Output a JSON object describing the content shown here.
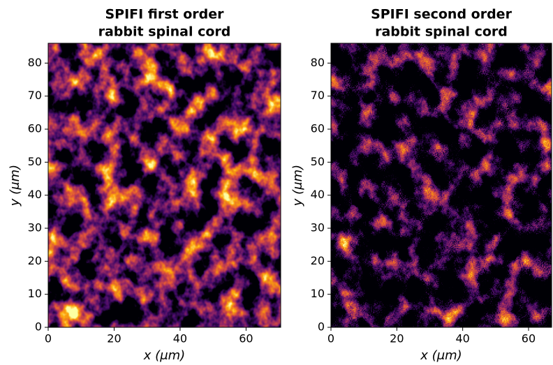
{
  "chart_data": [
    {
      "type": "image",
      "title": [
        "SPIFI first order",
        "rabbit spinal cord"
      ],
      "xlabel": "x (μm)",
      "ylabel": "y (μm)",
      "colormap": "inferno",
      "xlim": [
        0,
        70.5
      ],
      "ylim": [
        0,
        86
      ],
      "xticks": [
        0,
        20,
        40,
        60
      ],
      "yticks": [
        0,
        10,
        20,
        30,
        40,
        50,
        60,
        70,
        80
      ]
    },
    {
      "type": "image",
      "title": [
        "SPIFI second order",
        "rabbit spinal cord"
      ],
      "xlabel": "x (μm)",
      "ylabel": "y (μm)",
      "colormap": "inferno",
      "xlim": [
        0,
        67
      ],
      "ylim": [
        0,
        86
      ],
      "xticks": [
        0,
        20,
        40,
        60
      ],
      "yticks": [
        0,
        10,
        20,
        30,
        40,
        50,
        60,
        70,
        80
      ]
    }
  ]
}
